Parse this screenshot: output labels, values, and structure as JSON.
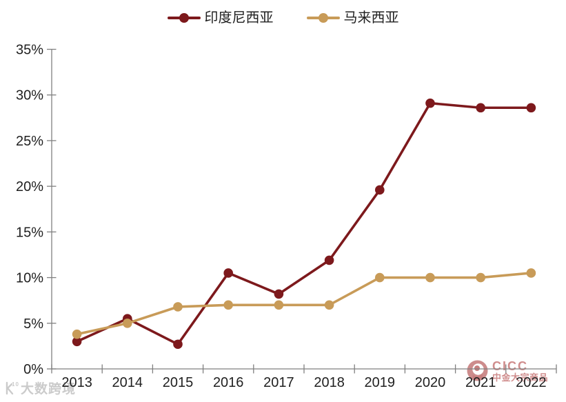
{
  "chart_data": {
    "type": "line",
    "title": "",
    "xlabel": "",
    "ylabel": "",
    "categories": [
      "2013",
      "2014",
      "2015",
      "2016",
      "2017",
      "2018",
      "2019",
      "2020",
      "2021",
      "2022"
    ],
    "series": [
      {
        "name": "印度尼西亚",
        "color": "#7D191C",
        "values": [
          3.0,
          5.5,
          2.7,
          10.5,
          8.2,
          11.9,
          19.6,
          29.1,
          28.6,
          28.6
        ]
      },
      {
        "name": "马来西亚",
        "color": "#C89B58",
        "values": [
          3.8,
          5.0,
          6.8,
          7.0,
          7.0,
          7.0,
          10.0,
          10.0,
          10.0,
          10.5
        ]
      }
    ],
    "y_ticks": [
      "0%",
      "5%",
      "10%",
      "15%",
      "20%",
      "25%",
      "30%",
      "35%"
    ],
    "y_tick_step": 5,
    "ylim": [
      0,
      35
    ],
    "grid": false,
    "legend_position": "top"
  },
  "legend": {
    "items": [
      {
        "label": "印度尼西亚"
      },
      {
        "label": "马来西亚"
      }
    ]
  },
  "watermarks": {
    "left": {
      "logo": "dashukuajing-smiley-100-logo",
      "text": "大数跨境"
    },
    "right": {
      "logo": "cicc-swirl-logo",
      "brand": "CICC",
      "subtitle": "中金大宗商品"
    }
  },
  "colors": {
    "indonesia": "#7D191C",
    "malaysia": "#C89B58",
    "axis": "#7f7f7f",
    "tick_label": "#1f1f1f",
    "watermark_gray": "#cbcbcb",
    "cicc_pink": "#d08d8d"
  }
}
